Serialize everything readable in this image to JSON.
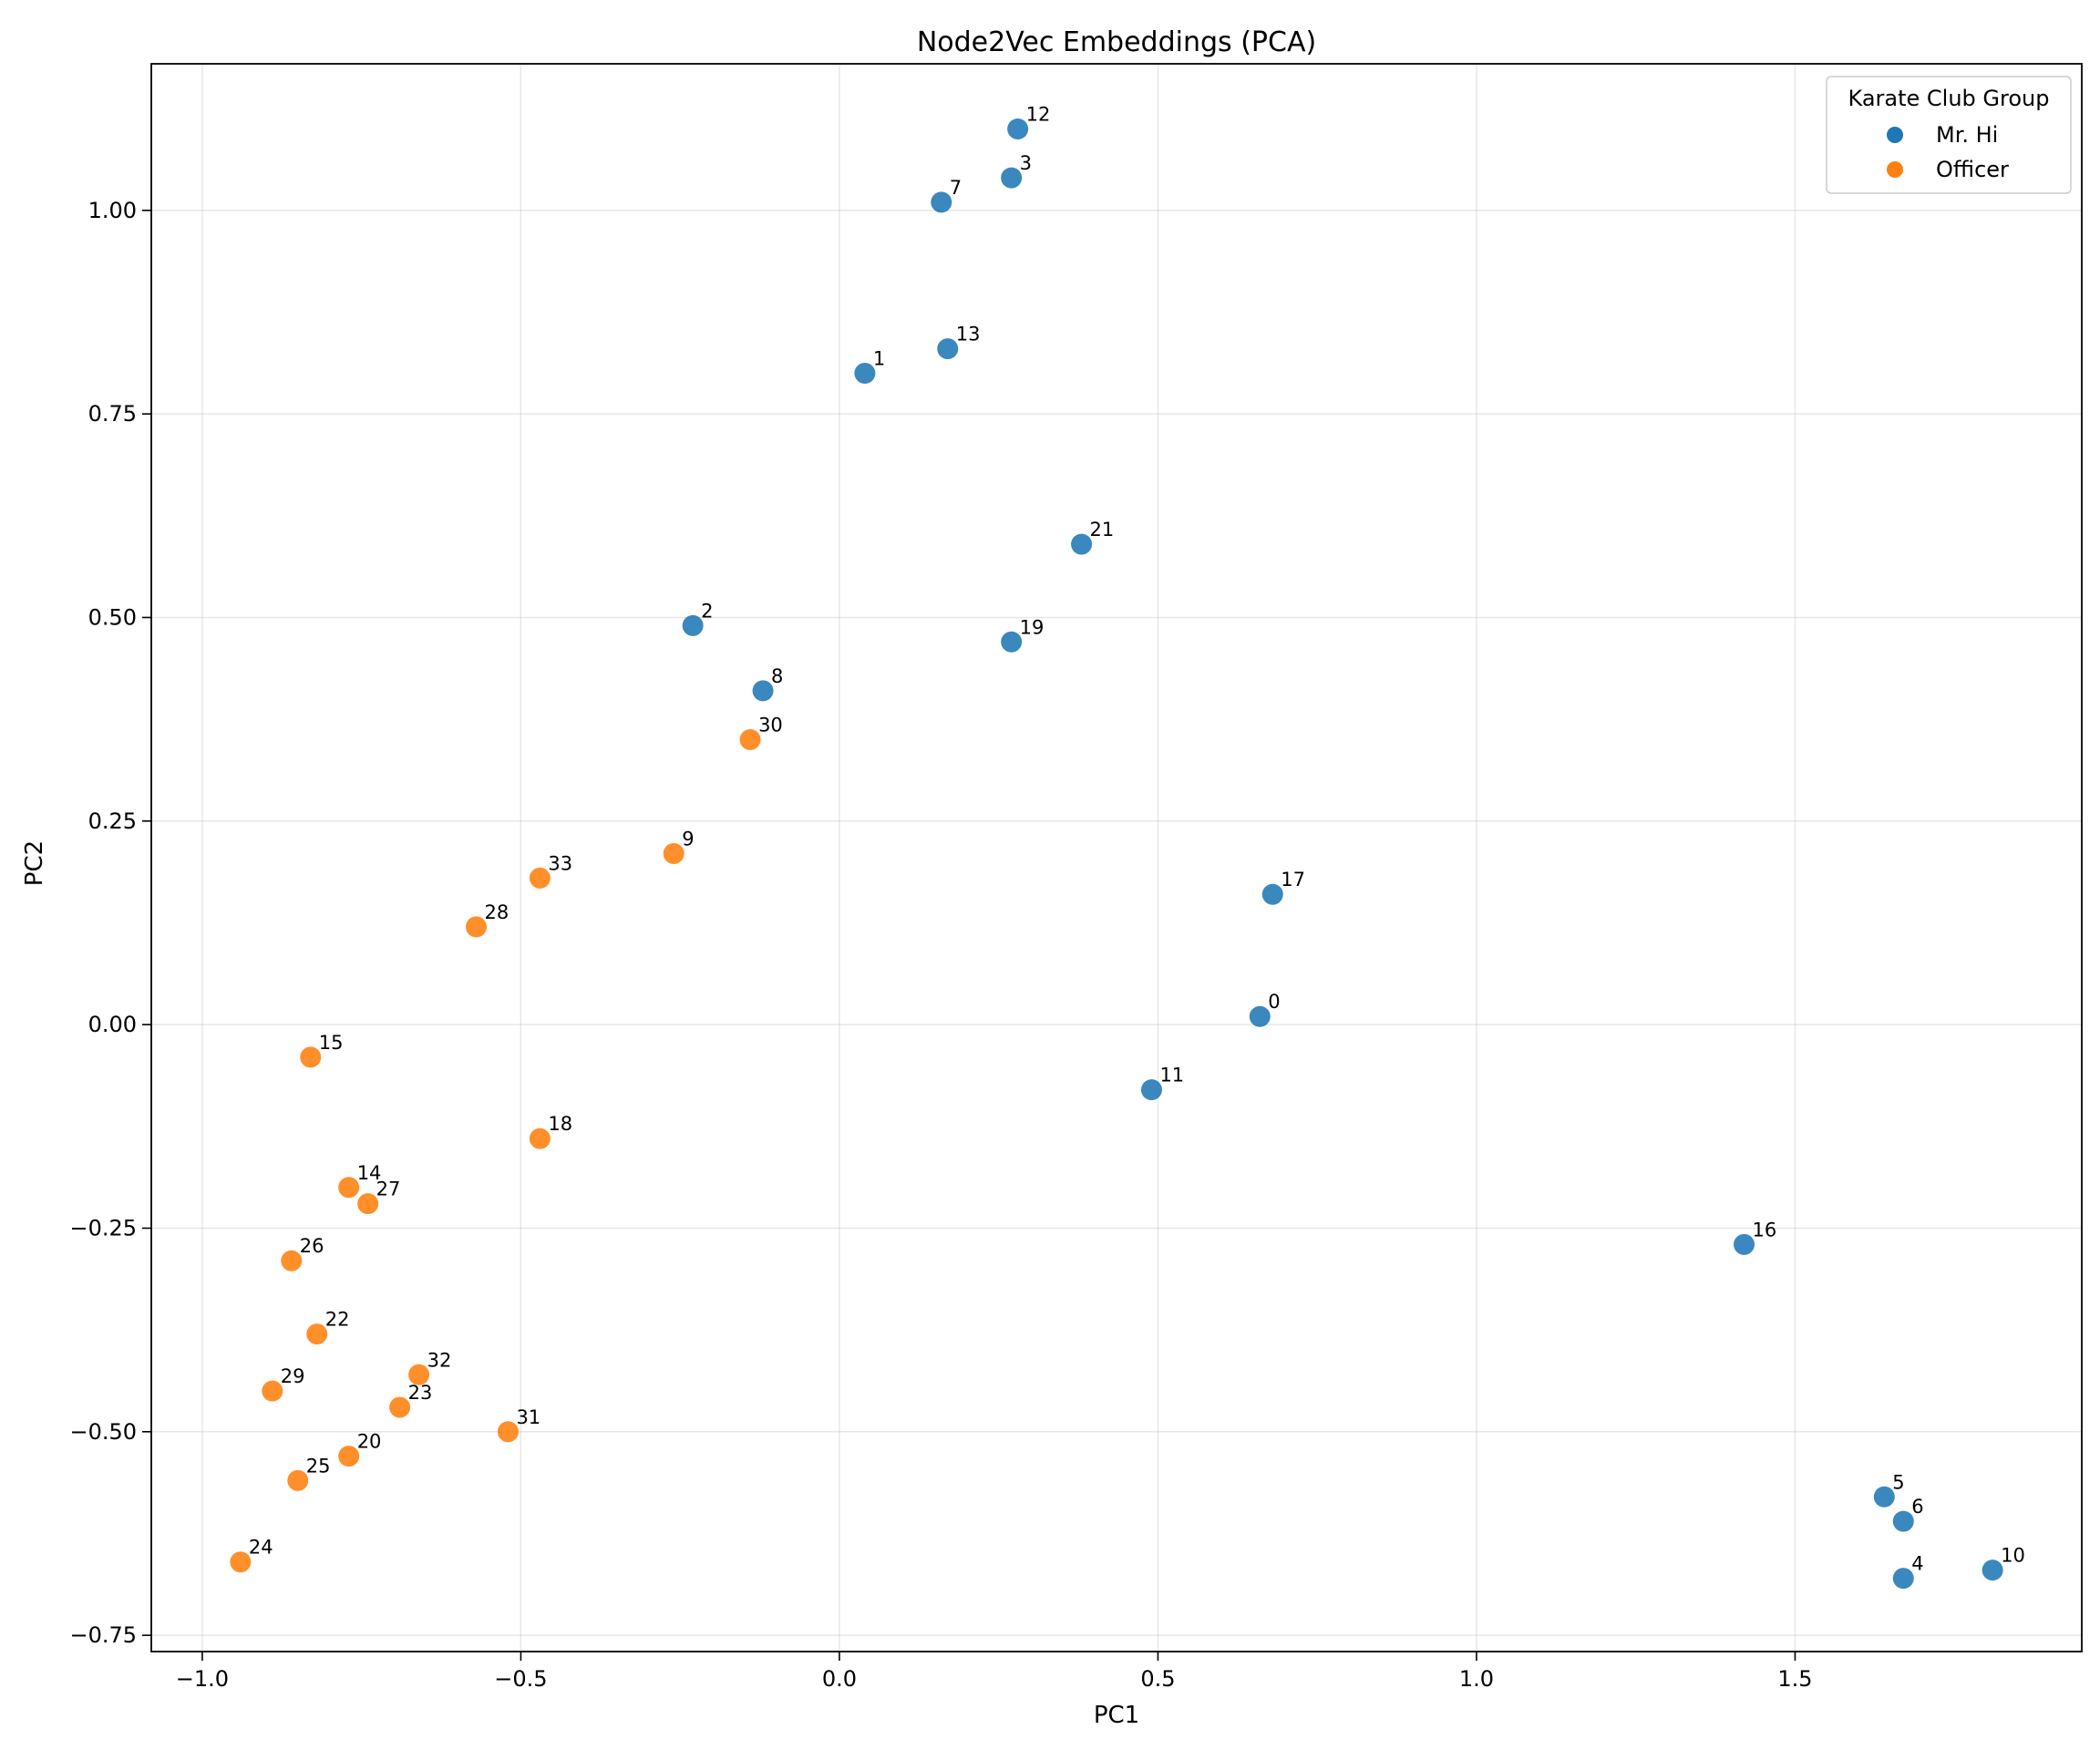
{
  "chart_data": {
    "type": "scatter",
    "title": "Node2Vec Embeddings (PCA)",
    "xlabel": "PC1",
    "ylabel": "PC2",
    "xlim": [
      -1.08,
      1.95
    ],
    "ylim": [
      -0.77,
      1.18
    ],
    "xticks": [
      -1.0,
      -0.5,
      0.0,
      0.5,
      1.0,
      1.5
    ],
    "xtick_labels": [
      "−1.0",
      "−0.5",
      "0.0",
      "0.5",
      "1.0",
      "1.5"
    ],
    "yticks": [
      -0.75,
      -0.5,
      -0.25,
      0.0,
      0.25,
      0.5,
      0.75,
      1.0
    ],
    "ytick_labels": [
      "−0.75",
      "−0.50",
      "−0.25",
      "0.00",
      "0.25",
      "0.50",
      "0.75",
      "1.00"
    ],
    "grid": true,
    "legend": {
      "title": "Karate Club Group",
      "position": "top-right"
    },
    "series": [
      {
        "name": "Mr. Hi",
        "color": "#1f77b4",
        "points": [
          {
            "label": "0",
            "x": 0.66,
            "y": 0.01
          },
          {
            "label": "1",
            "x": 0.04,
            "y": 0.8
          },
          {
            "label": "2",
            "x": -0.23,
            "y": 0.49
          },
          {
            "label": "3",
            "x": 0.27,
            "y": 1.04
          },
          {
            "label": "4",
            "x": 1.67,
            "y": -0.68
          },
          {
            "label": "5",
            "x": 1.64,
            "y": -0.58
          },
          {
            "label": "6",
            "x": 1.67,
            "y": -0.61
          },
          {
            "label": "7",
            "x": 0.16,
            "y": 1.01
          },
          {
            "label": "8",
            "x": -0.12,
            "y": 0.41
          },
          {
            "label": "10",
            "x": 1.81,
            "y": -0.67
          },
          {
            "label": "11",
            "x": 0.49,
            "y": -0.08
          },
          {
            "label": "12",
            "x": 0.28,
            "y": 1.1
          },
          {
            "label": "13",
            "x": 0.17,
            "y": 0.83
          },
          {
            "label": "16",
            "x": 1.42,
            "y": -0.27
          },
          {
            "label": "17",
            "x": 0.68,
            "y": 0.16
          },
          {
            "label": "19",
            "x": 0.27,
            "y": 0.47
          },
          {
            "label": "21",
            "x": 0.38,
            "y": 0.59
          }
        ]
      },
      {
        "name": "Officer",
        "color": "#ff7f0e",
        "points": [
          {
            "label": "9",
            "x": -0.26,
            "y": 0.21
          },
          {
            "label": "14",
            "x": -0.77,
            "y": -0.2
          },
          {
            "label": "15",
            "x": -0.83,
            "y": -0.04
          },
          {
            "label": "18",
            "x": -0.47,
            "y": -0.14
          },
          {
            "label": "20",
            "x": -0.77,
            "y": -0.53
          },
          {
            "label": "22",
            "x": -0.82,
            "y": -0.38
          },
          {
            "label": "23",
            "x": -0.69,
            "y": -0.47
          },
          {
            "label": "24",
            "x": -0.94,
            "y": -0.66
          },
          {
            "label": "25",
            "x": -0.85,
            "y": -0.56
          },
          {
            "label": "26",
            "x": -0.86,
            "y": -0.29
          },
          {
            "label": "27",
            "x": -0.74,
            "y": -0.22
          },
          {
            "label": "28",
            "x": -0.57,
            "y": 0.12
          },
          {
            "label": "29",
            "x": -0.89,
            "y": -0.45
          },
          {
            "label": "30",
            "x": -0.14,
            "y": 0.35
          },
          {
            "label": "31",
            "x": -0.52,
            "y": -0.5
          },
          {
            "label": "32",
            "x": -0.66,
            "y": -0.43
          },
          {
            "label": "33",
            "x": -0.47,
            "y": 0.18
          }
        ]
      }
    ]
  }
}
